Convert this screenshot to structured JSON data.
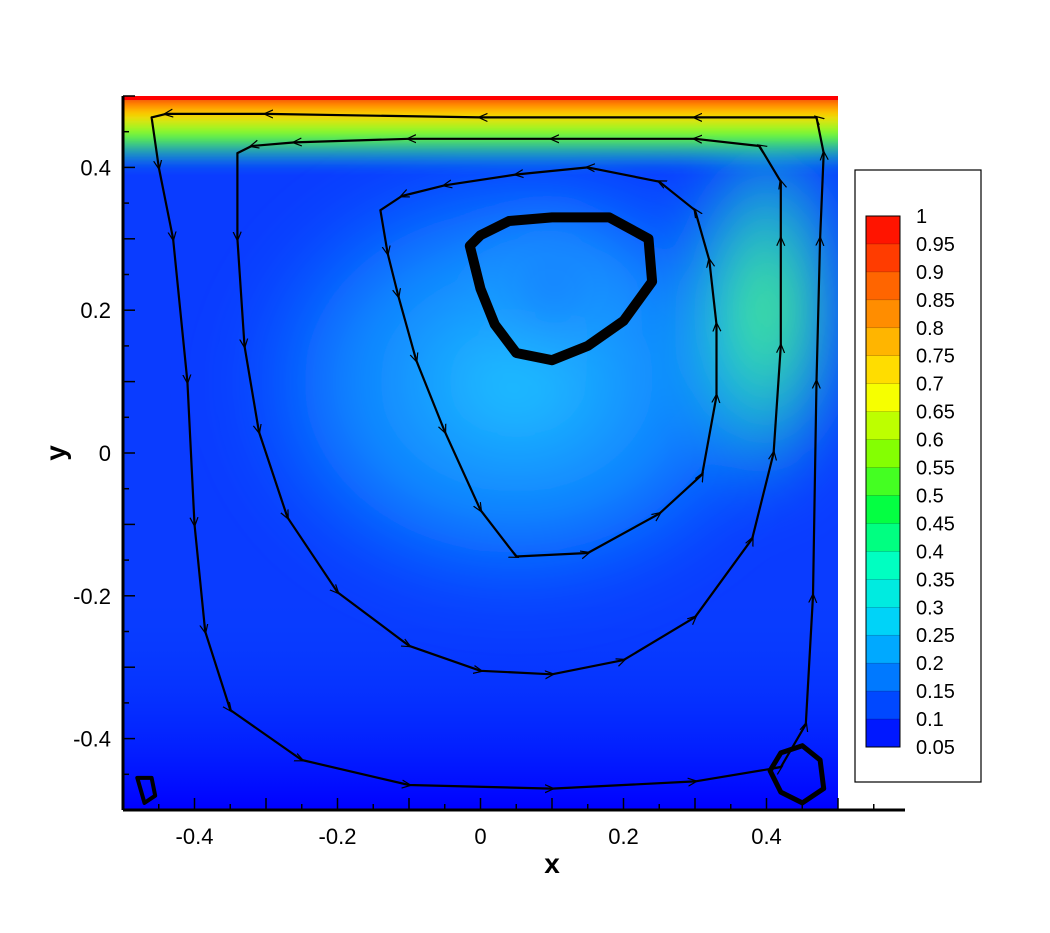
{
  "chart_data": {
    "type": "heatmap",
    "title": "",
    "xlabel": "x",
    "ylabel": "y",
    "xlim": [
      -0.5,
      0.5
    ],
    "ylim": [
      -0.5,
      0.5
    ],
    "x_ticks": [
      -0.4,
      -0.2,
      0,
      0.2,
      0.4
    ],
    "x_tick_labels": [
      "-0.4",
      "-0.2",
      "0",
      "0.2",
      "0.4"
    ],
    "y_ticks": [
      -0.4,
      -0.2,
      0,
      0.2,
      0.4
    ],
    "y_tick_labels": [
      "-0.4",
      "-0.2",
      "0",
      "0.2",
      "0.4"
    ],
    "colormap": [
      "#0000ff",
      "#0066ff",
      "#00ccff",
      "#00ffcc",
      "#00ff44",
      "#88ff00",
      "#ffff00",
      "#ffaa00",
      "#ff5500",
      "#ff0000"
    ],
    "colorbar": {
      "levels": [
        1,
        0.95,
        0.9,
        0.85,
        0.8,
        0.75,
        0.7,
        0.65,
        0.6,
        0.55,
        0.5,
        0.45,
        0.4,
        0.35,
        0.3,
        0.25,
        0.2,
        0.15,
        0.1,
        0.05
      ],
      "labels": [
        "1",
        "0.95",
        "0.9",
        "0.85",
        "0.8",
        "0.75",
        "0.7",
        "0.65",
        "0.6",
        "0.55",
        "0.5",
        "0.45",
        "0.4",
        "0.35",
        "0.3",
        "0.25",
        "0.2",
        "0.15",
        "0.1",
        "0.05"
      ],
      "min": 0.05,
      "max": 1,
      "placement": "right"
    },
    "field_features": {
      "lid_value": 1,
      "primary_vortex_center": [
        0.1,
        0.23
      ],
      "high_speed_region_center": [
        0.4,
        0.2
      ],
      "bottom_left_eddy_center": [
        -0.475,
        -0.475
      ],
      "bottom_right_eddy_center": [
        0.445,
        -0.445
      ]
    },
    "streamlines": [
      {
        "points": [
          [
            -0.46,
            0.47
          ],
          [
            -0.45,
            0.4
          ],
          [
            -0.43,
            0.3
          ],
          [
            -0.41,
            0.1
          ],
          [
            -0.4,
            -0.1
          ],
          [
            -0.385,
            -0.25
          ],
          [
            -0.35,
            -0.36
          ],
          [
            -0.25,
            -0.43
          ],
          [
            -0.1,
            -0.465
          ],
          [
            0.1,
            -0.47
          ],
          [
            0.3,
            -0.46
          ],
          [
            0.42,
            -0.44
          ],
          [
            0.455,
            -0.38
          ],
          [
            0.465,
            -0.2
          ],
          [
            0.47,
            0.1
          ],
          [
            0.475,
            0.3
          ],
          [
            0.48,
            0.42
          ],
          [
            0.47,
            0.47
          ],
          [
            0.3,
            0.47
          ],
          [
            0,
            0.47
          ],
          [
            -0.3,
            0.475
          ],
          [
            -0.44,
            0.475
          ],
          [
            -0.46,
            0.47
          ]
        ]
      },
      {
        "points": [
          [
            -0.34,
            0.42
          ],
          [
            -0.34,
            0.3
          ],
          [
            -0.33,
            0.15
          ],
          [
            -0.31,
            0.03
          ],
          [
            -0.27,
            -0.09
          ],
          [
            -0.2,
            -0.195
          ],
          [
            -0.1,
            -0.27
          ],
          [
            0,
            -0.305
          ],
          [
            0.1,
            -0.31
          ],
          [
            0.2,
            -0.29
          ],
          [
            0.3,
            -0.23
          ],
          [
            0.38,
            -0.12
          ],
          [
            0.41,
            0
          ],
          [
            0.42,
            0.15
          ],
          [
            0.42,
            0.3
          ],
          [
            0.42,
            0.38
          ],
          [
            0.39,
            0.43
          ],
          [
            0.3,
            0.44
          ],
          [
            0.1,
            0.44
          ],
          [
            -0.1,
            0.44
          ],
          [
            -0.26,
            0.435
          ],
          [
            -0.32,
            0.43
          ],
          [
            -0.34,
            0.42
          ]
        ]
      },
      {
        "points": [
          [
            -0.14,
            0.34
          ],
          [
            -0.13,
            0.28
          ],
          [
            -0.115,
            0.22
          ],
          [
            -0.09,
            0.13
          ],
          [
            -0.05,
            0.03
          ],
          [
            0,
            -0.08
          ],
          [
            0.05,
            -0.145
          ],
          [
            0.15,
            -0.14
          ],
          [
            0.25,
            -0.085
          ],
          [
            0.31,
            -0.03
          ],
          [
            0.33,
            0.08
          ],
          [
            0.33,
            0.18
          ],
          [
            0.32,
            0.27
          ],
          [
            0.3,
            0.34
          ],
          [
            0.25,
            0.38
          ],
          [
            0.15,
            0.4
          ],
          [
            0.05,
            0.39
          ],
          [
            -0.05,
            0.375
          ],
          [
            -0.11,
            0.36
          ],
          [
            -0.14,
            0.34
          ]
        ]
      },
      {
        "points": [
          [
            -0.015,
            0.29
          ],
          [
            0,
            0.23
          ],
          [
            0.02,
            0.18
          ],
          [
            0.05,
            0.14
          ],
          [
            0.1,
            0.13
          ],
          [
            0.15,
            0.15
          ],
          [
            0.2,
            0.185
          ],
          [
            0.24,
            0.24
          ],
          [
            0.235,
            0.3
          ],
          [
            0.18,
            0.33
          ],
          [
            0.1,
            0.33
          ],
          [
            0.04,
            0.325
          ],
          [
            0,
            0.305
          ],
          [
            -0.015,
            0.29
          ]
        ]
      },
      {
        "points": [
          [
            -0.48,
            -0.455
          ],
          [
            -0.47,
            -0.49
          ],
          [
            -0.455,
            -0.48
          ],
          [
            -0.46,
            -0.455
          ],
          [
            -0.48,
            -0.455
          ]
        ]
      },
      {
        "points": [
          [
            0.405,
            -0.445
          ],
          [
            0.42,
            -0.475
          ],
          [
            0.45,
            -0.49
          ],
          [
            0.48,
            -0.47
          ],
          [
            0.475,
            -0.43
          ],
          [
            0.45,
            -0.41
          ],
          [
            0.42,
            -0.42
          ],
          [
            0.405,
            -0.445
          ]
        ]
      }
    ]
  }
}
